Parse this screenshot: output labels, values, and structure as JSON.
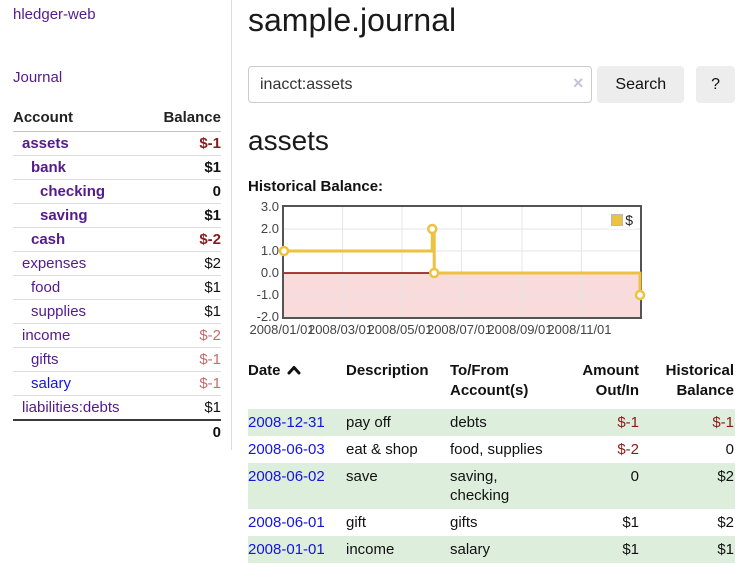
{
  "sidebar": {
    "brand": "hledger-web",
    "nav_journal": "Journal",
    "accounts_header": {
      "account": "Account",
      "balance": "Balance"
    },
    "accounts": [
      {
        "name": "assets",
        "balance": "$-1"
      },
      {
        "name": "bank",
        "balance": "$1"
      },
      {
        "name": "checking",
        "balance": "0"
      },
      {
        "name": "saving",
        "balance": "$1"
      },
      {
        "name": "cash",
        "balance": "$-2"
      },
      {
        "name": "expenses",
        "balance": "$2"
      },
      {
        "name": "food",
        "balance": "$1"
      },
      {
        "name": "supplies",
        "balance": "$1"
      },
      {
        "name": "income",
        "balance": "$-2"
      },
      {
        "name": "gifts",
        "balance": "$-1"
      },
      {
        "name": "salary",
        "balance": "$-1"
      },
      {
        "name": "liabilities:debts",
        "balance": "$1"
      }
    ],
    "total": "0"
  },
  "main": {
    "title": "sample.journal",
    "search": {
      "value": "inacct:assets",
      "clear_icon": "×",
      "button_label": "Search",
      "help_label": "?"
    },
    "account_heading": "assets",
    "chart_title": "Historical Balance:",
    "table": {
      "headers": {
        "date": "Date",
        "sort_icon": "chevron-up",
        "description": "Description",
        "accounts": "To/From Account(s)",
        "amount": "Amount Out/In",
        "balance": "Historical Balance"
      },
      "rows": [
        {
          "date": "2008-12-31",
          "description": "pay off",
          "accounts": "debts",
          "amount": "$-1",
          "balance": "$-1"
        },
        {
          "date": "2008-06-03",
          "description": "eat & shop",
          "accounts": "food, supplies",
          "amount": "$-2",
          "balance": "0"
        },
        {
          "date": "2008-06-02",
          "description": "save",
          "accounts": "saving, checking",
          "amount": "0",
          "balance": "$2"
        },
        {
          "date": "2008-06-01",
          "description": "gift",
          "accounts": "gifts",
          "amount": "$1",
          "balance": "$2"
        },
        {
          "date": "2008-01-01",
          "description": "income",
          "accounts": "salary",
          "amount": "$1",
          "balance": "$1"
        }
      ]
    }
  },
  "chart_data": {
    "type": "line",
    "title": "Historical Balance:",
    "step": true,
    "series": [
      {
        "name": "$",
        "color": "#edc240",
        "points": [
          [
            "2008-01-01",
            1
          ],
          [
            "2008-06-01",
            2
          ],
          [
            "2008-06-03",
            0
          ],
          [
            "2008-12-31",
            -1
          ]
        ]
      }
    ],
    "x_range": [
      "2008-01-01",
      "2008-12-31"
    ],
    "ylim": [
      -2,
      3
    ],
    "yticks": [
      "3.0",
      "2.0",
      "1.0",
      "0.0",
      "-1.0",
      "-2.0"
    ],
    "ytick_values": [
      3,
      2,
      1,
      0,
      -1,
      -2
    ],
    "xticks": [
      {
        "label": "2008/01/01",
        "date": "2008-01-01"
      },
      {
        "label": "2008/03/01",
        "date": "2008-03-01"
      },
      {
        "label": "2008/05/01",
        "date": "2008-05-01"
      },
      {
        "label": "2008/07/01",
        "date": "2008-07-01"
      },
      {
        "label": "2008/09/01",
        "date": "2008-09-01"
      },
      {
        "label": "2008/11/01",
        "date": "2008-11-01"
      }
    ],
    "legend_position": "top-right",
    "grid": true,
    "negative_region_color": "#f9dbdb",
    "zero_line_color": "#8b0000",
    "grid_color": "#e5e5e5",
    "border_color": "#545454"
  }
}
